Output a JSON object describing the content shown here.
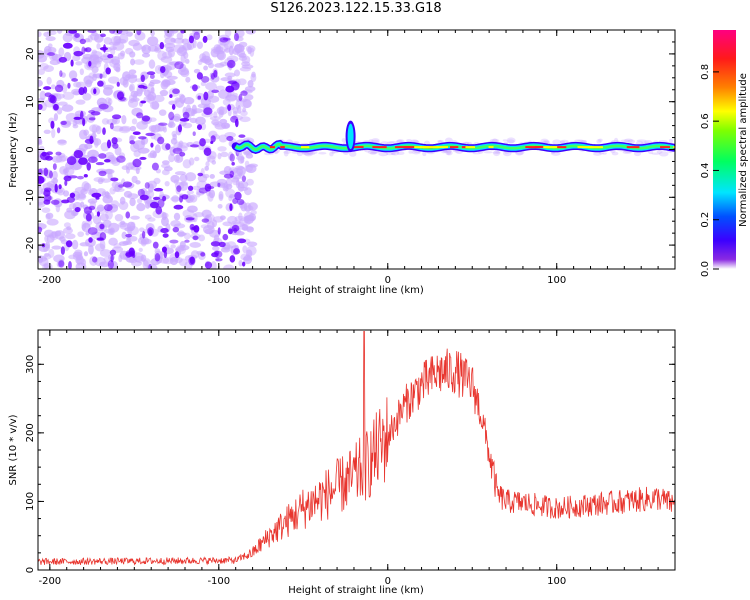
{
  "title": "S126.2023.122.15.33.G18",
  "colors": {
    "spectrum_low": "#6a00ff",
    "spectrum_light": "#c9a8ff",
    "snr_line": "#e8352e",
    "frame": "#000000"
  },
  "chart_data": [
    {
      "type": "heatmap",
      "title": "",
      "xlabel": "Height of straight line (km)",
      "ylabel": "Frequency (Hz)",
      "xlim": [
        -207,
        170
      ],
      "ylim": [
        -25,
        25
      ],
      "xticks": [
        -200,
        -100,
        0,
        100
      ],
      "yticks": [
        -20,
        -10,
        0,
        10,
        20
      ],
      "colorbar": {
        "label": "Normalized spectral amplitude",
        "range": [
          0,
          0.97
        ],
        "ticks": [
          "0.0",
          "0.2",
          "0.4",
          "0.6",
          "0.8"
        ],
        "tick_values": [
          0.0,
          0.2,
          0.4,
          0.6,
          0.8
        ],
        "colormap": "rainbow"
      },
      "features": {
        "noise_region_x": [
          -207,
          -85
        ],
        "signal_band_center_hz": 0.5,
        "signal_start_km": -90,
        "spike_km": -22,
        "spike_peak_hz": 5
      }
    },
    {
      "type": "line",
      "title": "",
      "xlabel": "Height of straight line (km)",
      "ylabel": "SNR (10 * v/v)",
      "xlim": [
        -207,
        170
      ],
      "ylim": [
        0,
        350
      ],
      "xticks": [
        -200,
        -100,
        0,
        100
      ],
      "yticks": [
        0,
        100,
        200,
        300
      ],
      "series": [
        {
          "profile_x": [
            -207,
            -90,
            -80,
            -70,
            -60,
            -50,
            -40,
            -30,
            -20,
            -14,
            -10,
            0,
            10,
            20,
            30,
            40,
            50,
            55,
            60,
            65,
            70,
            80,
            100,
            120,
            140,
            160,
            170
          ],
          "profile_y": [
            12,
            14,
            25,
            50,
            70,
            90,
            105,
            120,
            135,
            150,
            160,
            195,
            240,
            270,
            288,
            290,
            270,
            230,
            170,
            110,
            100,
            98,
            90,
            95,
            100,
            105,
            95
          ],
          "spike_x": -14,
          "spike_y": 348
        }
      ]
    }
  ]
}
